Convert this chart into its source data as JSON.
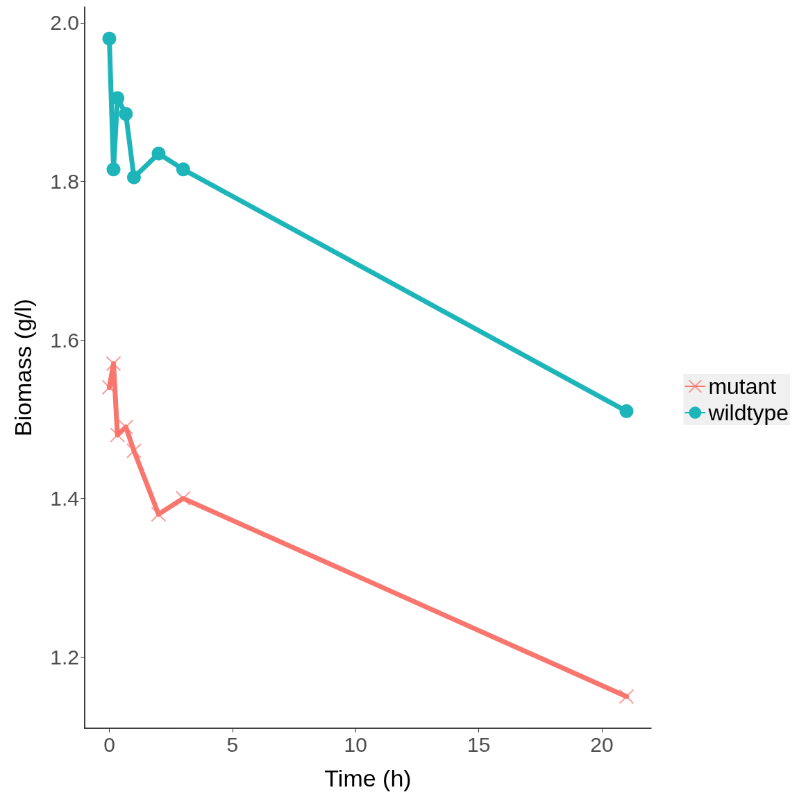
{
  "chart_data": {
    "type": "line",
    "xlabel": "Time (h)",
    "ylabel": "Biomass (g/l)",
    "xlim": [
      -1,
      22
    ],
    "xticks": [
      0,
      5,
      10,
      15,
      20
    ],
    "ylim": [
      1.11,
      2.02
    ],
    "yticks": [
      1.2,
      1.4,
      1.6,
      1.8,
      {
        "value": 2,
        "label": "2.0"
      }
    ],
    "grid": false,
    "legend": "right",
    "line_style": "solid",
    "x": [
      0,
      0.17,
      0.33,
      0.67,
      1,
      2,
      3,
      21
    ],
    "series": [
      {
        "name": "mutant",
        "color": "#f8766d",
        "marker": "cross",
        "values": [
          1.54,
          1.57,
          1.48,
          1.49,
          1.46,
          1.38,
          1.4,
          1.15
        ]
      },
      {
        "name": "wildtype",
        "color": "#1db5b9",
        "marker": "circle",
        "values": [
          1.98,
          1.815,
          1.905,
          1.885,
          1.805,
          1.835,
          1.815,
          1.51
        ]
      }
    ]
  }
}
